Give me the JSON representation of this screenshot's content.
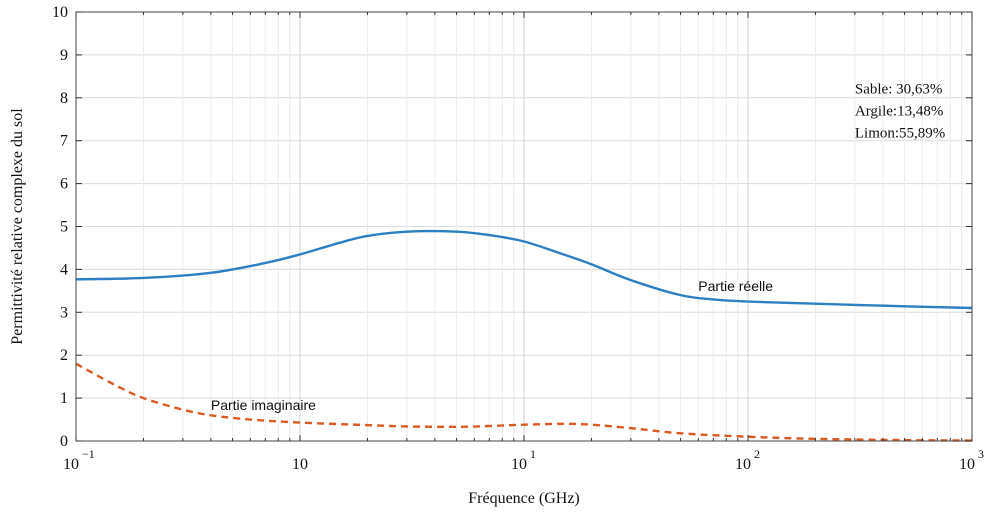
{
  "chart_data": {
    "type": "line",
    "xlabel": "Fréquence (GHz)",
    "ylabel": "Permittivité relative complexe du sol",
    "x_scale": "log",
    "xlim": [
      0.1,
      1000
    ],
    "ylim": [
      0,
      10
    ],
    "grid": true,
    "x_ticks": [
      {
        "value": 0.1,
        "base": "10",
        "exp": "−1",
        "label": ""
      },
      {
        "value": 1,
        "base": "",
        "exp": "",
        "label": "10"
      },
      {
        "value": 10,
        "base": "10",
        "exp": "1",
        "label": ""
      },
      {
        "value": 100,
        "base": "10",
        "exp": "2",
        "label": ""
      },
      {
        "value": 1000,
        "base": "10",
        "exp": "3",
        "label": ""
      }
    ],
    "y_ticks": [
      0,
      1,
      2,
      3,
      4,
      5,
      6,
      7,
      8,
      9,
      10
    ],
    "series": [
      {
        "name": "Partie réelle",
        "color": "#2e7fc1",
        "style": "solid",
        "x": [
          0.1,
          0.2,
          0.4,
          0.7,
          1,
          1.5,
          2,
          3,
          5,
          7,
          10,
          15,
          20,
          30,
          50,
          70,
          100,
          200,
          500,
          1000
        ],
        "y": [
          3.77,
          3.8,
          3.92,
          4.15,
          4.35,
          4.62,
          4.78,
          4.88,
          4.88,
          4.8,
          4.65,
          4.35,
          4.12,
          3.75,
          3.4,
          3.3,
          3.25,
          3.2,
          3.14,
          3.1
        ]
      },
      {
        "name": "Partie imaginaire",
        "color": "#d95a24",
        "style": "dashed",
        "x": [
          0.1,
          0.15,
          0.2,
          0.3,
          0.4,
          0.6,
          1,
          2,
          3,
          5,
          7,
          10,
          15,
          20,
          30,
          50,
          100,
          200,
          500,
          1000
        ],
        "y": [
          1.8,
          1.3,
          1.0,
          0.73,
          0.6,
          0.5,
          0.43,
          0.37,
          0.34,
          0.33,
          0.35,
          0.38,
          0.4,
          0.38,
          0.3,
          0.18,
          0.1,
          0.05,
          0.02,
          0.01
        ]
      }
    ],
    "series_labels": [
      {
        "text": "Partie réelle",
        "x": 60,
        "y": 3.5
      },
      {
        "text": "Partie imaginaire",
        "x": 0.4,
        "y": 0.72
      }
    ],
    "annotations": [
      "Sable: 30,63%",
      "Argile:13,48%",
      "Limon:55,89%"
    ],
    "annotation_anchor": {
      "x": 300,
      "y": 8.1
    }
  }
}
